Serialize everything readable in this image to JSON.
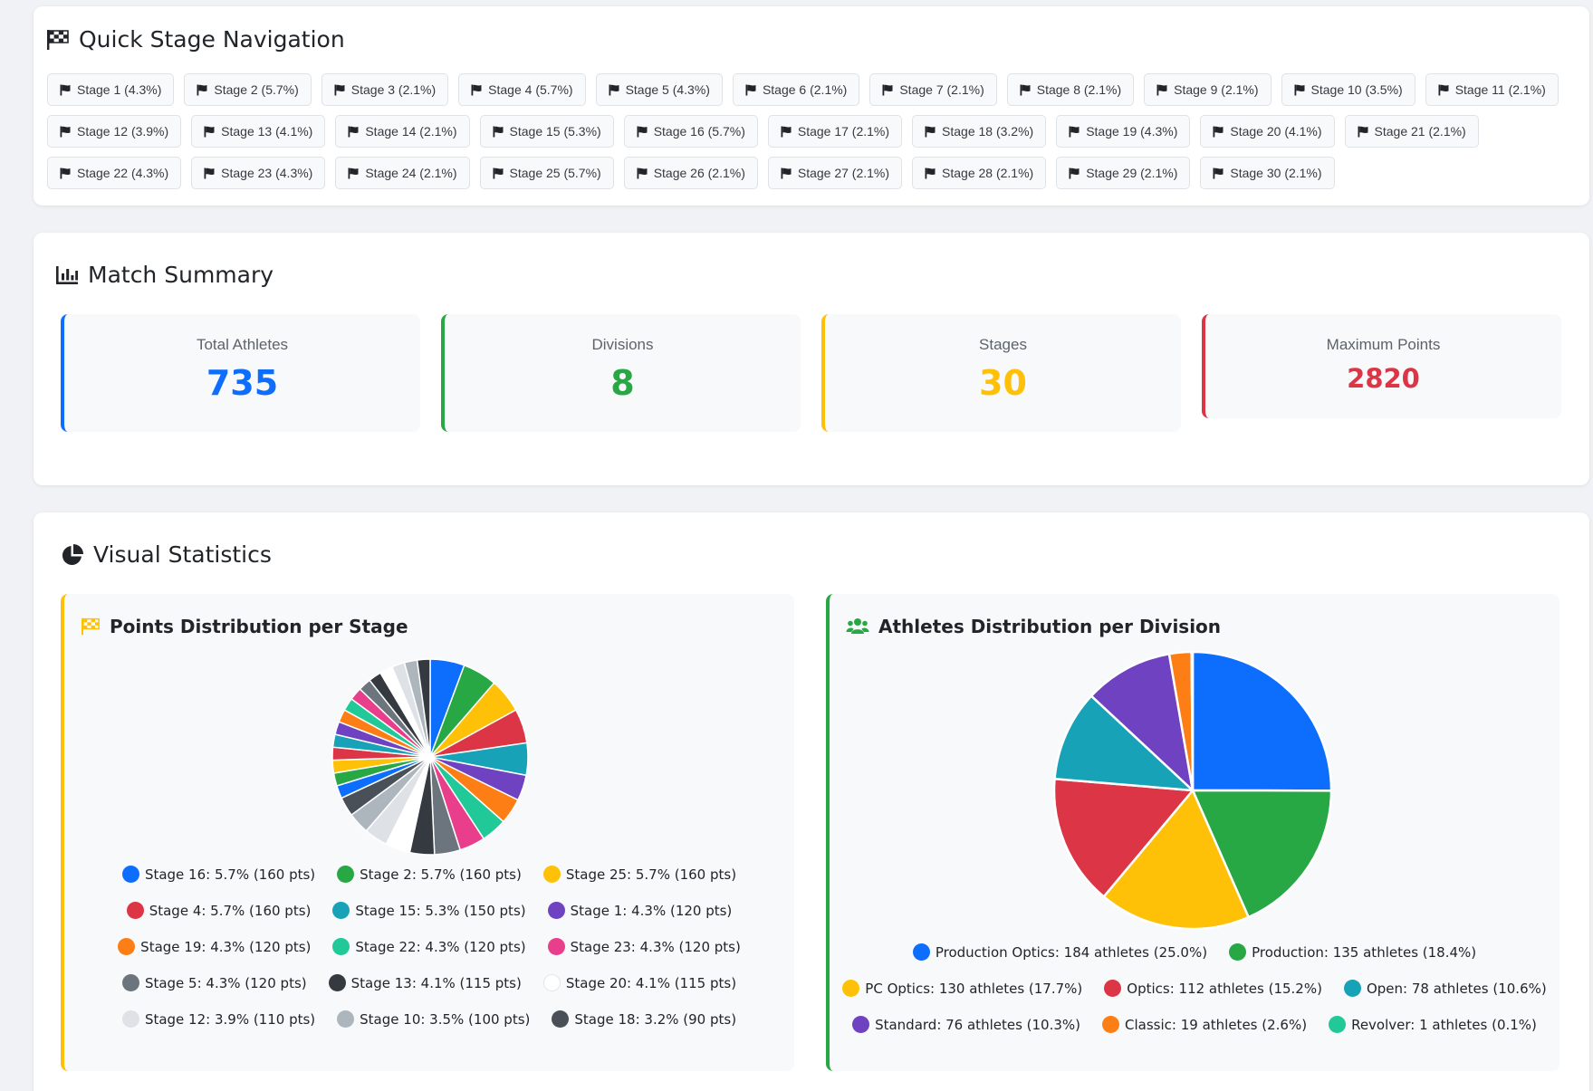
{
  "nav": {
    "title": "Quick Stage Navigation",
    "stages": [
      "Stage 1 (4.3%)",
      "Stage 2 (5.7%)",
      "Stage 3 (2.1%)",
      "Stage 4 (5.7%)",
      "Stage 5 (4.3%)",
      "Stage 6 (2.1%)",
      "Stage 7 (2.1%)",
      "Stage 8 (2.1%)",
      "Stage 9 (2.1%)",
      "Stage 10 (3.5%)",
      "Stage 11 (2.1%)",
      "Stage 12 (3.9%)",
      "Stage 13 (4.1%)",
      "Stage 14 (2.1%)",
      "Stage 15 (5.3%)",
      "Stage 16 (5.7%)",
      "Stage 17 (2.1%)",
      "Stage 18 (3.2%)",
      "Stage 19 (4.3%)",
      "Stage 20 (4.1%)",
      "Stage 21 (2.1%)",
      "Stage 22 (4.3%)",
      "Stage 23 (4.3%)",
      "Stage 24 (2.1%)",
      "Stage 25 (5.7%)",
      "Stage 26 (2.1%)",
      "Stage 27 (2.1%)",
      "Stage 28 (2.1%)",
      "Stage 29 (2.1%)",
      "Stage 30 (2.1%)"
    ]
  },
  "summary": {
    "title": "Match Summary",
    "stats": [
      {
        "label": "Total Athletes",
        "value": "735",
        "color": "#0d6efd"
      },
      {
        "label": "Divisions",
        "value": "8",
        "color": "#28a745"
      },
      {
        "label": "Stages",
        "value": "30",
        "color": "#ffc107"
      },
      {
        "label": "Maximum Points",
        "value": "2820",
        "color": "#dc3545"
      }
    ]
  },
  "visual": {
    "title": "Visual Statistics"
  },
  "chart_data": [
    {
      "type": "pie",
      "title": "Points Distribution per Stage",
      "slices": [
        {
          "label": "Stage 16",
          "legend": "Stage 16: 5.7% (160 pts)",
          "value": 160,
          "color": "#0d6efd"
        },
        {
          "label": "Stage 2",
          "legend": "Stage 2: 5.7% (160 pts)",
          "value": 160,
          "color": "#28a745"
        },
        {
          "label": "Stage 25",
          "legend": "Stage 25: 5.7% (160 pts)",
          "value": 160,
          "color": "#ffc107"
        },
        {
          "label": "Stage 4",
          "legend": "Stage 4: 5.7% (160 pts)",
          "value": 160,
          "color": "#dc3545"
        },
        {
          "label": "Stage 15",
          "legend": "Stage 15: 5.3% (150 pts)",
          "value": 150,
          "color": "#17a2b8"
        },
        {
          "label": "Stage 1",
          "legend": "Stage 1: 4.3% (120 pts)",
          "value": 120,
          "color": "#6f42c1"
        },
        {
          "label": "Stage 19",
          "legend": "Stage 19: 4.3% (120 pts)",
          "value": 120,
          "color": "#fd7e14"
        },
        {
          "label": "Stage 22",
          "legend": "Stage 22: 4.3% (120 pts)",
          "value": 120,
          "color": "#20c997"
        },
        {
          "label": "Stage 23",
          "legend": "Stage 23: 4.3% (120 pts)",
          "value": 120,
          "color": "#e83e8c"
        },
        {
          "label": "Stage 5",
          "legend": "Stage 5: 4.3% (120 pts)",
          "value": 120,
          "color": "#6c757d"
        },
        {
          "label": "Stage 13",
          "legend": "Stage 13: 4.1% (115 pts)",
          "value": 115,
          "color": "#343a40"
        },
        {
          "label": "Stage 20",
          "legend": "Stage 20: 4.1% (115 pts)",
          "value": 115,
          "color": "#ffffff"
        },
        {
          "label": "Stage 12",
          "legend": "Stage 12: 3.9% (110 pts)",
          "value": 110,
          "color": "#dee2e6"
        },
        {
          "label": "Stage 10",
          "legend": "Stage 10: 3.5% (100 pts)",
          "value": 100,
          "color": "#adb5bd"
        },
        {
          "label": "Stage 18",
          "legend": "Stage 18: 3.2% (90 pts)",
          "value": 90,
          "color": "#495057"
        },
        {
          "label": "Stage 3",
          "value": 60,
          "color": "#0d6efd"
        },
        {
          "label": "Stage 6",
          "value": 60,
          "color": "#28a745"
        },
        {
          "label": "Stage 7",
          "value": 60,
          "color": "#ffc107"
        },
        {
          "label": "Stage 8",
          "value": 60,
          "color": "#dc3545"
        },
        {
          "label": "Stage 9",
          "value": 60,
          "color": "#17a2b8"
        },
        {
          "label": "Stage 11",
          "value": 60,
          "color": "#6f42c1"
        },
        {
          "label": "Stage 14",
          "value": 60,
          "color": "#fd7e14"
        },
        {
          "label": "Stage 17",
          "value": 60,
          "color": "#20c997"
        },
        {
          "label": "Stage 21",
          "value": 60,
          "color": "#e83e8c"
        },
        {
          "label": "Stage 24",
          "value": 60,
          "color": "#6c757d"
        },
        {
          "label": "Stage 26",
          "value": 60,
          "color": "#343a40"
        },
        {
          "label": "Stage 27",
          "value": 60,
          "color": "#ffffff"
        },
        {
          "label": "Stage 28",
          "value": 60,
          "color": "#dee2e6"
        },
        {
          "label": "Stage 29",
          "value": 60,
          "color": "#adb5bd"
        },
        {
          "label": "Stage 30",
          "value": 60,
          "color": "#343a40"
        }
      ]
    },
    {
      "type": "pie",
      "title": "Athletes Distribution per Division",
      "slices": [
        {
          "label": "Production Optics",
          "legend": "Production Optics: 184 athletes (25.0%)",
          "value": 184,
          "color": "#0d6efd"
        },
        {
          "label": "Production",
          "legend": "Production: 135 athletes (18.4%)",
          "value": 135,
          "color": "#28a745"
        },
        {
          "label": "PC Optics",
          "legend": "PC Optics: 130 athletes (17.7%)",
          "value": 130,
          "color": "#ffc107"
        },
        {
          "label": "Optics",
          "legend": "Optics: 112 athletes (15.2%)",
          "value": 112,
          "color": "#dc3545"
        },
        {
          "label": "Open",
          "legend": "Open: 78 athletes (10.6%)",
          "value": 78,
          "color": "#17a2b8"
        },
        {
          "label": "Standard",
          "legend": "Standard: 76 athletes (10.3%)",
          "value": 76,
          "color": "#6f42c1"
        },
        {
          "label": "Classic",
          "legend": "Classic: 19 athletes (2.6%)",
          "value": 19,
          "color": "#fd7e14"
        },
        {
          "label": "Revolver",
          "legend": "Revolver: 1 athletes (0.1%)",
          "value": 1,
          "color": "#20c997"
        }
      ]
    }
  ]
}
